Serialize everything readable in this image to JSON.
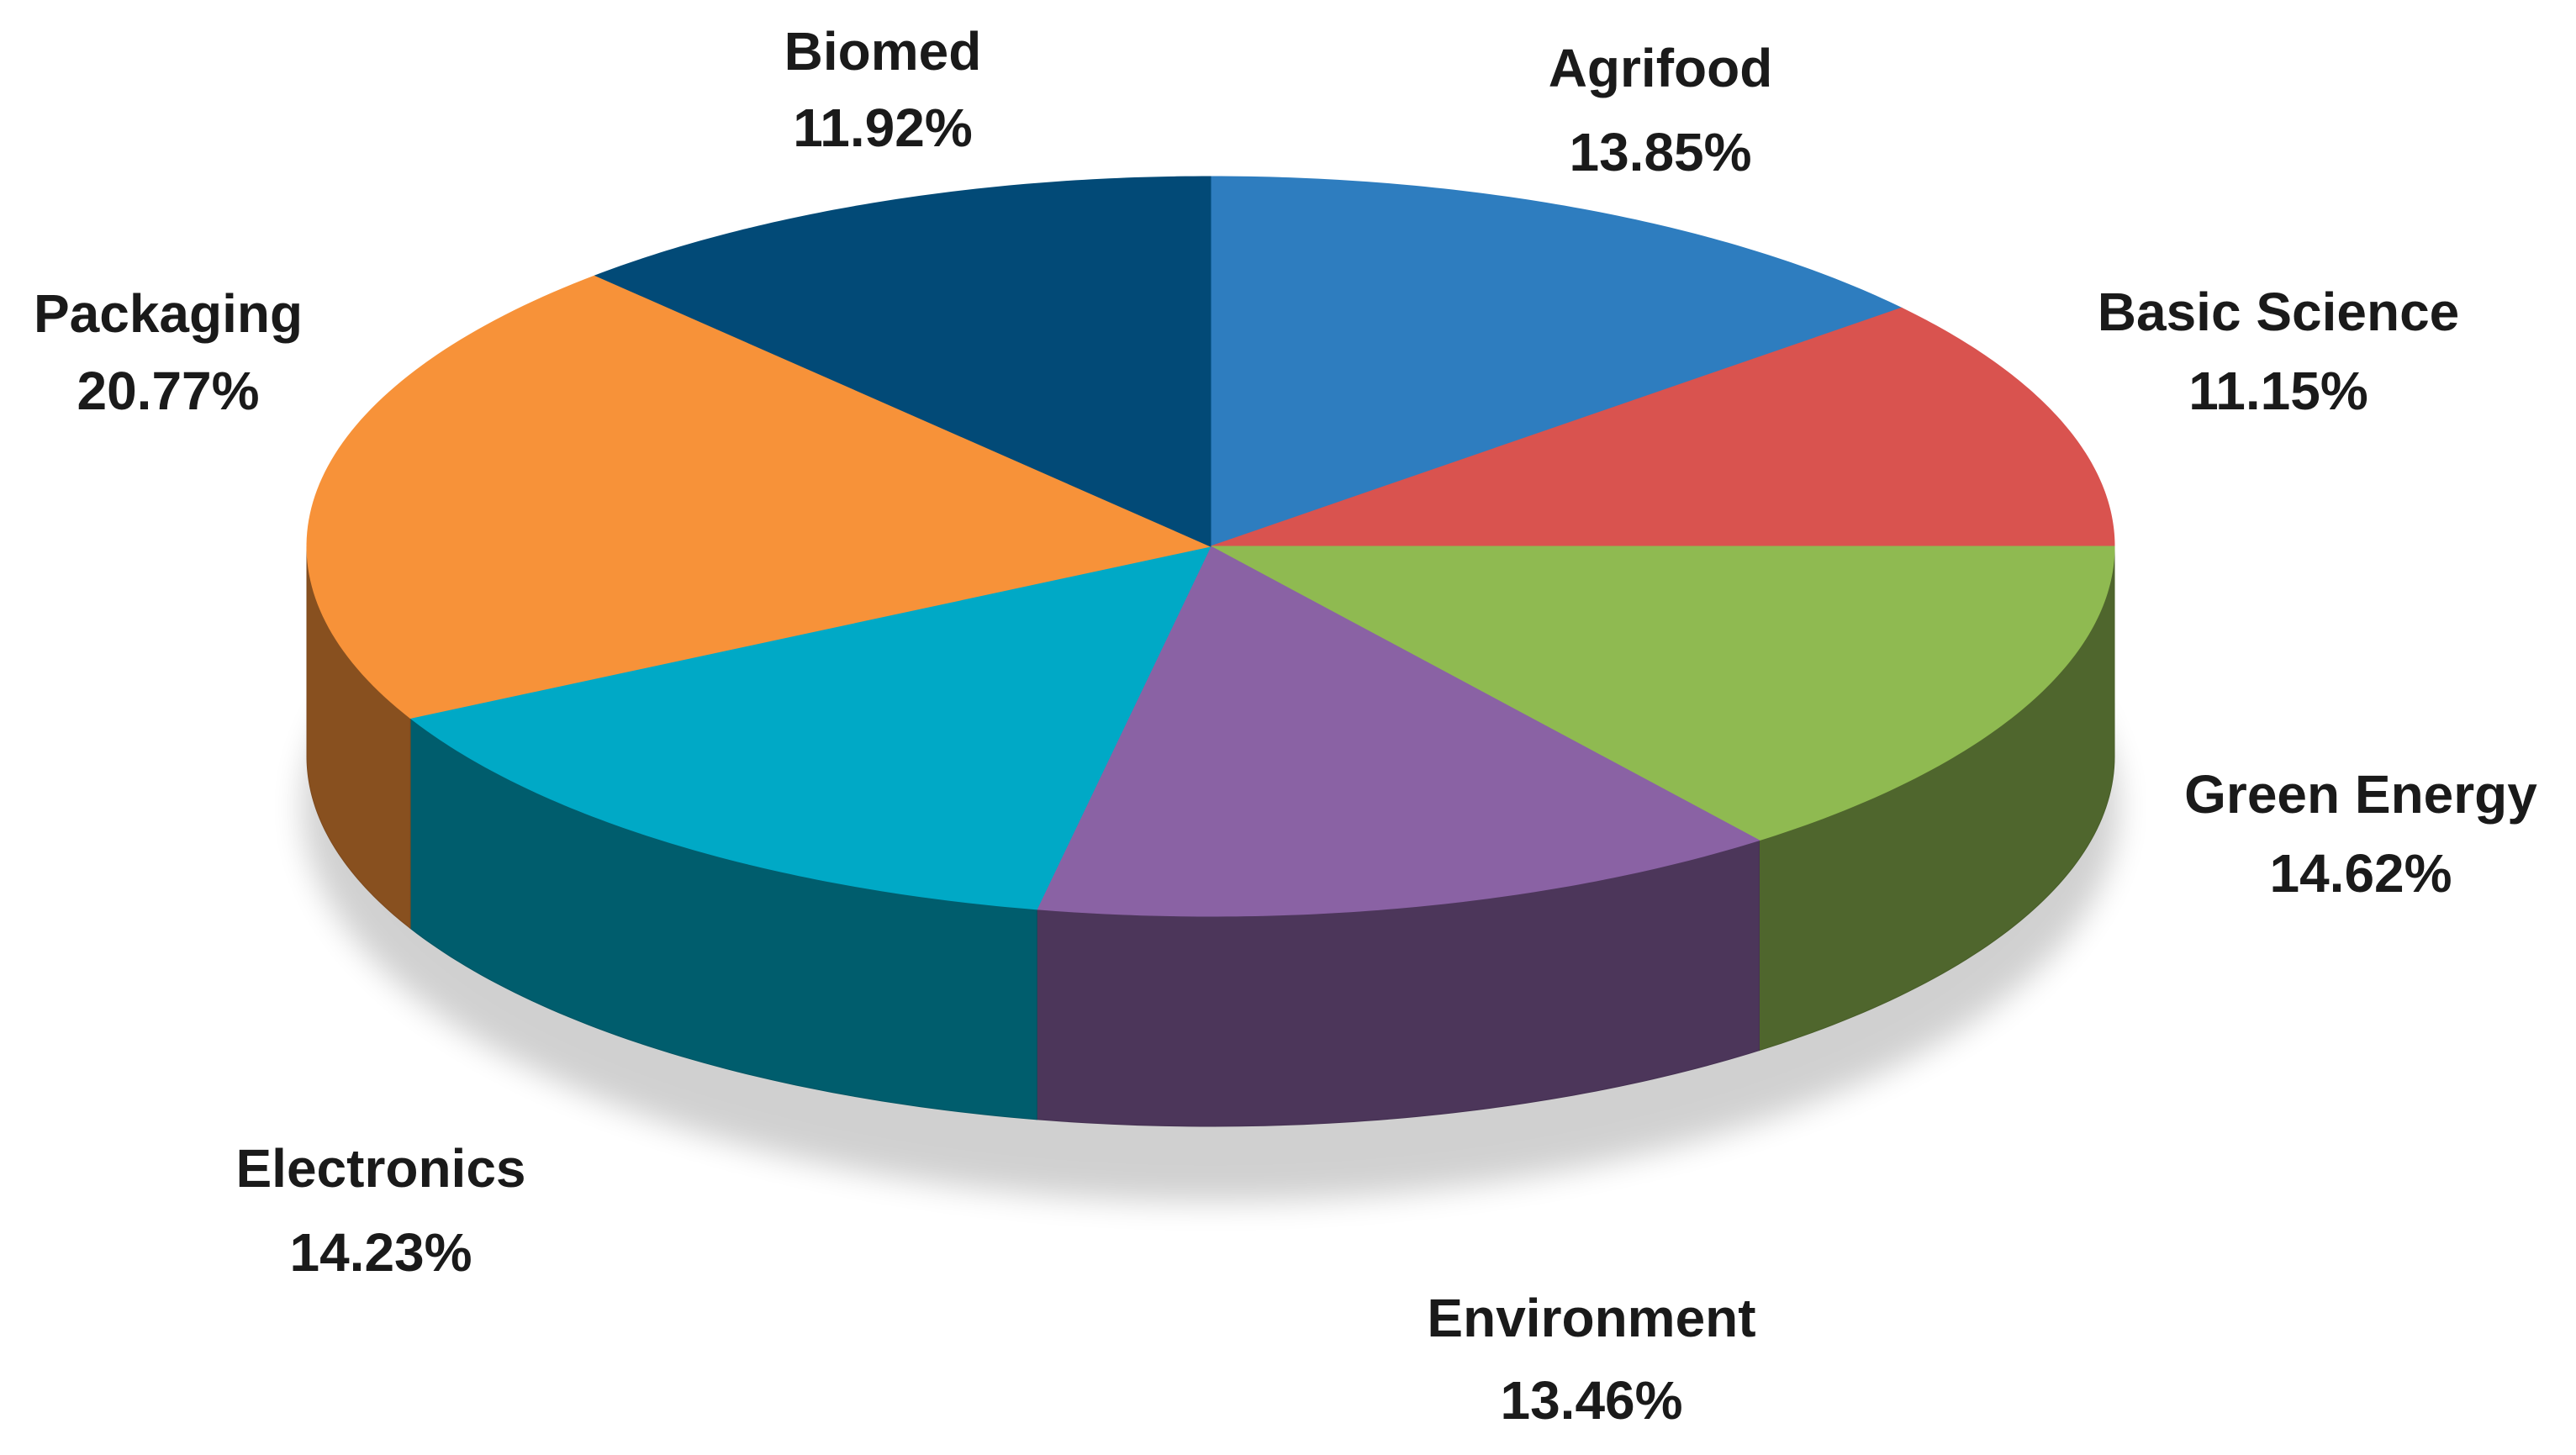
{
  "chart_data": {
    "type": "pie3d",
    "categories": [
      "Agrifood",
      "Basic Science",
      "Green Energy",
      "Environment",
      "Electronics",
      "Packaging",
      "Biomed"
    ],
    "values": [
      13.85,
      11.15,
      14.62,
      13.46,
      14.23,
      20.77,
      11.92
    ],
    "value_labels": [
      "13.85%",
      "11.15%",
      "14.62%",
      "13.46%",
      "14.23%",
      "20.77%",
      "11.92%"
    ],
    "colors": [
      "#2e7dbf",
      "#d9534f",
      "#8fba51",
      "#8a62a4",
      "#00a9c6",
      "#f79239",
      "#024a77"
    ]
  }
}
